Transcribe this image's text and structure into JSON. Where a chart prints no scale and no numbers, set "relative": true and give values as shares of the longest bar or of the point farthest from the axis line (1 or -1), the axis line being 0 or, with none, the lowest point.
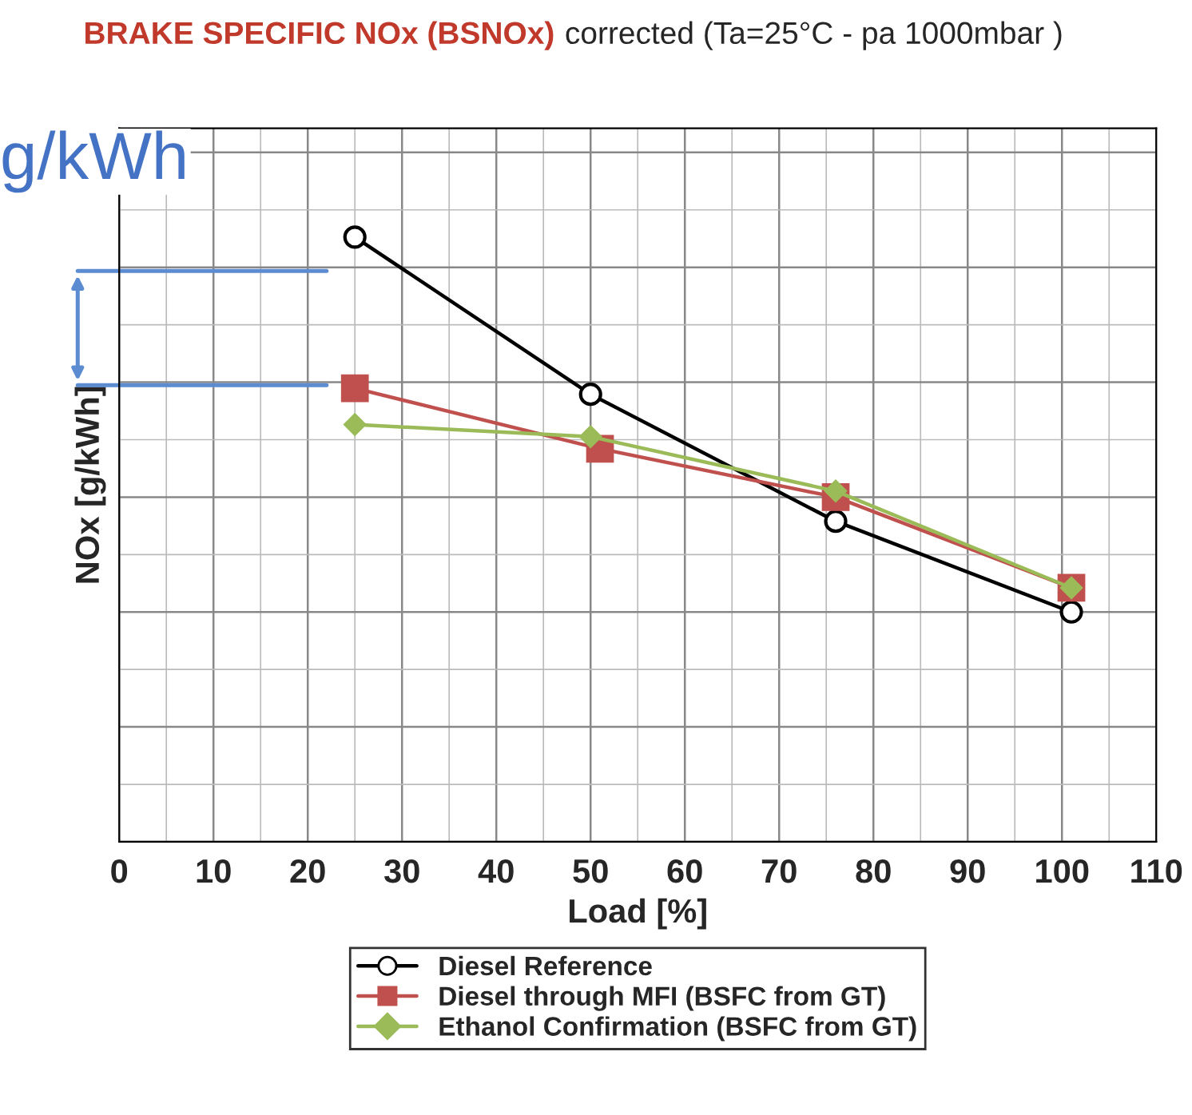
{
  "chart_data": {
    "type": "line",
    "title": "BRAKE SPECIFIC NOx (BSNOx)",
    "subtitle": "corrected (Ta=25°C - pa 1000mbar )",
    "xlabel": "Load [%]",
    "ylabel": "NOx [g/kWh]",
    "annotations": [
      "g/kWh"
    ],
    "relative": true,
    "xlim": [
      0,
      110
    ],
    "xticks": [
      0,
      10,
      20,
      30,
      40,
      50,
      60,
      70,
      80,
      90,
      100,
      110
    ],
    "grid": true,
    "legend": "bottom",
    "series": [
      {
        "name": "Diesel Reference",
        "color": "#000000",
        "marker": "circle",
        "x": [
          25,
          50,
          76,
          101
        ],
        "values": [
          1,
          0.74,
          0.53,
          0.38
        ]
      },
      {
        "name": "Diesel through MFI (BSFC from GT)",
        "color": "#c0504d",
        "marker": "square",
        "x": [
          25,
          51,
          76,
          101
        ],
        "values": [
          0.75,
          0.65,
          0.57,
          0.42
        ]
      },
      {
        "name": "Ethanol Confirmation (BSFC from GT)",
        "color": "#9bbb59",
        "marker": "diamond",
        "x": [
          25,
          50,
          76,
          101
        ],
        "values": [
          0.69,
          0.67,
          0.58,
          0.42
        ]
      }
    ]
  }
}
